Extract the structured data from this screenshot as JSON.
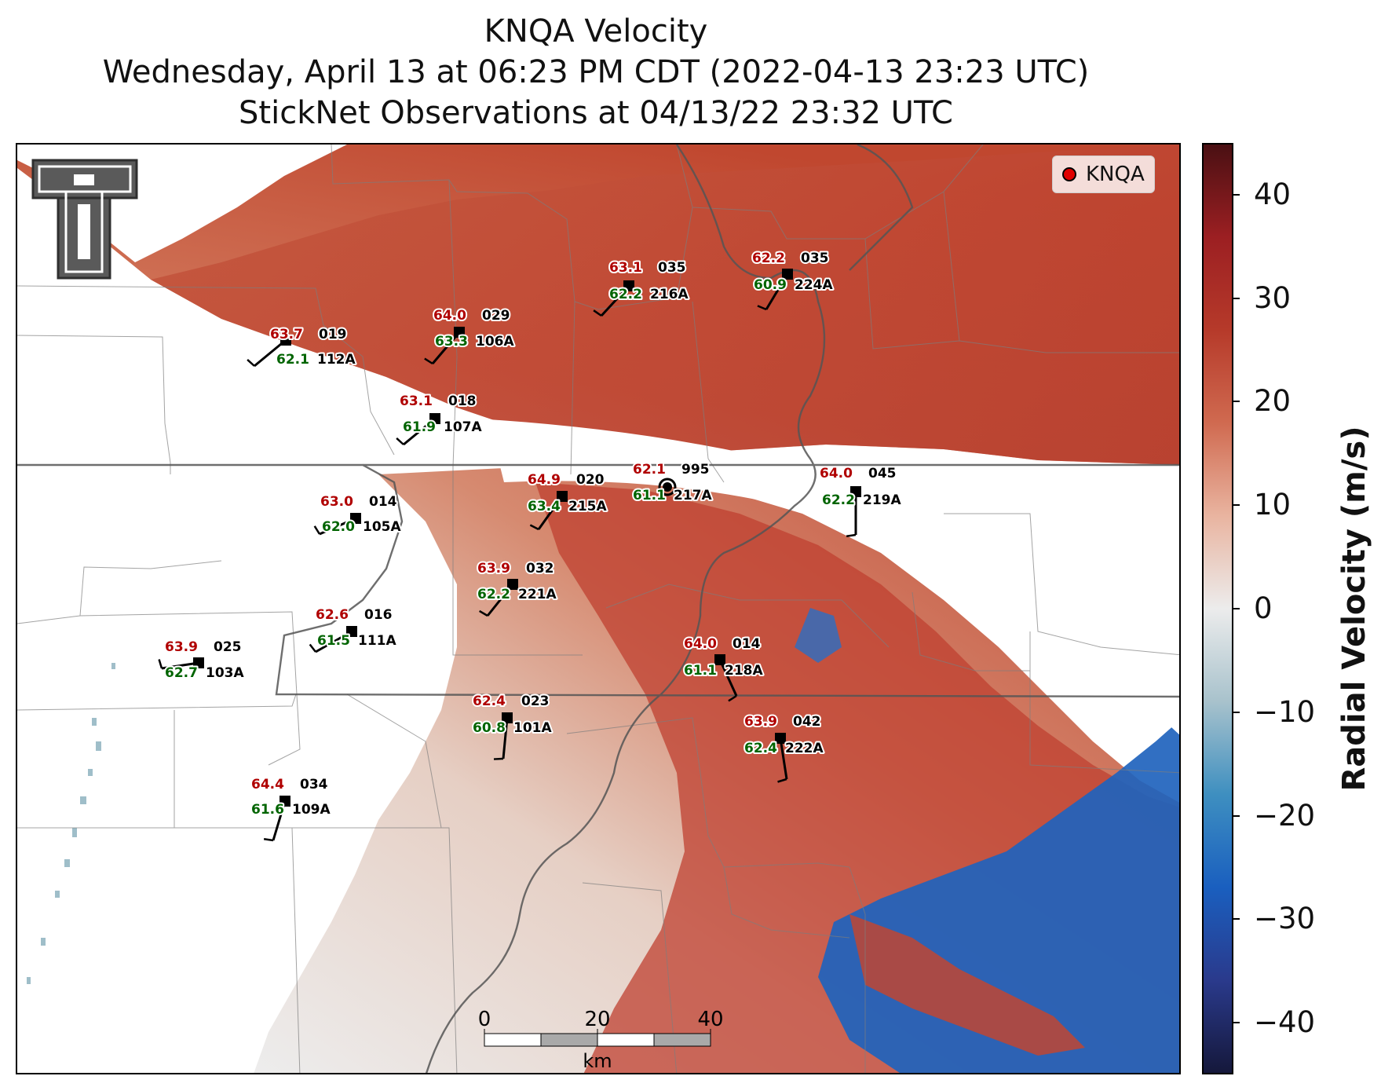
{
  "title": {
    "line1": "KNQA Velocity",
    "line2": "Wednesday, April 13 at 06:23 PM CDT (2022-04-13 23:23 UTC)",
    "line3": "StickNet Observations at 04/13/22 23:32 UTC"
  },
  "legend": {
    "label": "KNQA",
    "marker_color": "#e00000",
    "marker": "red-dot"
  },
  "logo": {
    "name": "texas-tech-double-t-logo",
    "text": "TT"
  },
  "colorbar": {
    "label": "Radial Velocity (m/s)",
    "min": -45,
    "max": 45,
    "ticks": [
      {
        "value": 40,
        "text": "40"
      },
      {
        "value": 30,
        "text": "30"
      },
      {
        "value": 20,
        "text": "20"
      },
      {
        "value": 10,
        "text": "10"
      },
      {
        "value": 0,
        "text": "0"
      },
      {
        "value": -10,
        "text": "−10"
      },
      {
        "value": -20,
        "text": "−20"
      },
      {
        "value": -30,
        "text": "−30"
      },
      {
        "value": -40,
        "text": "−40"
      }
    ],
    "colors": [
      "#15183b",
      "#2a3a8c",
      "#1a5fbf",
      "#3e8fc0",
      "#a8c2cc",
      "#ececec",
      "#e9b4a0",
      "#d06a50",
      "#b63a2a",
      "#9c1f22",
      "#4a1013"
    ]
  },
  "scalebar": {
    "ticks": [
      "0",
      "20",
      "40"
    ],
    "unit": "km"
  },
  "colors": {
    "temp": "#b00000",
    "dewpoint": "#006400",
    "id": "#000000"
  },
  "stations": [
    {
      "id": "112A",
      "sensor": "019",
      "temp": "63.7",
      "dew": "62.1"
    },
    {
      "id": "106A",
      "sensor": "029",
      "temp": "64.0",
      "dew": "63.3"
    },
    {
      "id": "216A",
      "sensor": "035",
      "temp": "63.1",
      "dew": "62.2"
    },
    {
      "id": "224A",
      "sensor": "035",
      "temp": "62.2",
      "dew": "60.9"
    },
    {
      "id": "107A",
      "sensor": "018",
      "temp": "63.1",
      "dew": "61.9"
    },
    {
      "id": "217A",
      "sensor": "995",
      "temp": "62.1",
      "dew": "61.1"
    },
    {
      "id": "219A",
      "sensor": "045",
      "temp": "64.0",
      "dew": "62.2"
    },
    {
      "id": "215A",
      "sensor": "020",
      "temp": "64.9",
      "dew": "63.4"
    },
    {
      "id": "105A",
      "sensor": "014",
      "temp": "63.0",
      "dew": "62.0"
    },
    {
      "id": "221A",
      "sensor": "032",
      "temp": "63.9",
      "dew": "62.2"
    },
    {
      "id": "111A",
      "sensor": "016",
      "temp": "62.6",
      "dew": "61.5"
    },
    {
      "id": "103A",
      "sensor": "025",
      "temp": "63.9",
      "dew": "62.7"
    },
    {
      "id": "218A",
      "sensor": "014",
      "temp": "64.0",
      "dew": "61.1"
    },
    {
      "id": "101A",
      "sensor": "023",
      "temp": "62.4",
      "dew": "60.8"
    },
    {
      "id": "222A",
      "sensor": "042",
      "temp": "63.9",
      "dew": "62.4"
    },
    {
      "id": "109A",
      "sensor": "034",
      "temp": "64.4",
      "dew": "61.6"
    }
  ]
}
